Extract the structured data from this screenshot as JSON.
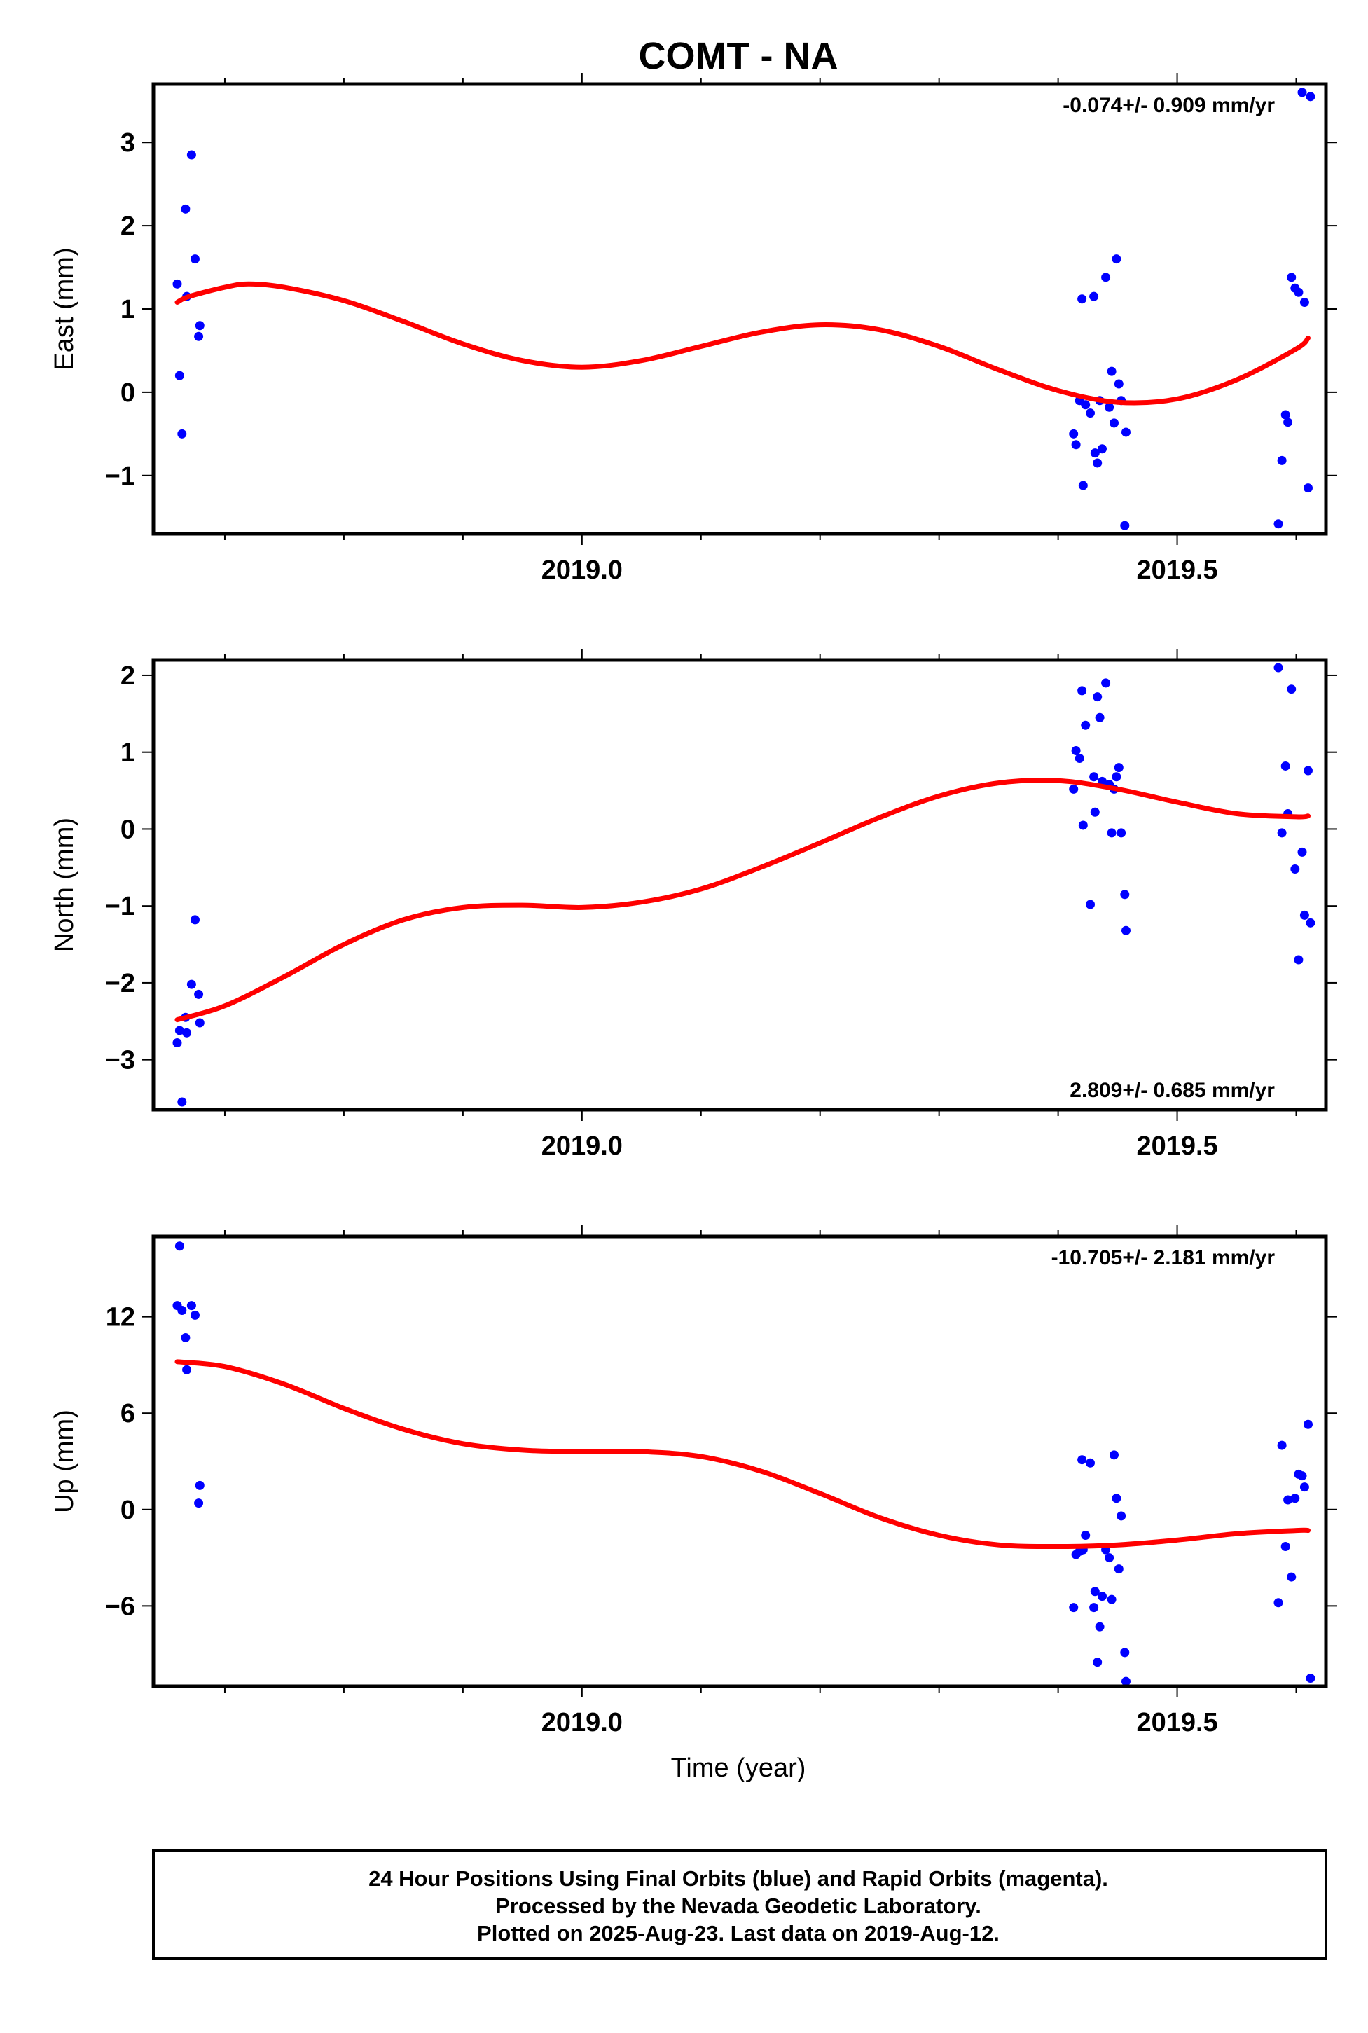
{
  "title": "COMT - NA",
  "xlabel": "Time (year)",
  "footer": {
    "line1": "24 Hour Positions Using Final Orbits (blue) and Rapid Orbits (magenta).",
    "line2": "Processed by the Nevada Geodetic Laboratory.",
    "line3": "Plotted on 2025-Aug-23. Last data on 2019-Aug-12."
  },
  "colors": {
    "points": "#0000ff",
    "fit": "#ff0000",
    "frame": "#000000"
  },
  "chart_data": [
    {
      "type": "scatter",
      "ylabel": "East (mm)",
      "rate": "-0.074+/- 0.909 mm/yr",
      "xlim": [
        2018.64,
        2019.625
      ],
      "ylim": [
        -1.7,
        3.7
      ],
      "xticks": [
        2019.0,
        2019.5
      ],
      "xtick_labels": [
        "2019.0",
        "2019.5"
      ],
      "yticks": [
        -1,
        0,
        1,
        2,
        3
      ],
      "ytick_labels": [
        "−1",
        "0",
        "1",
        "2",
        "3"
      ],
      "x": [
        2018.66,
        2018.662,
        2018.664,
        2018.667,
        2018.668,
        2018.672,
        2018.675,
        2018.678,
        2018.679,
        2019.413,
        2019.415,
        2019.418,
        2019.42,
        2019.421,
        2019.423,
        2019.427,
        2019.43,
        2019.431,
        2019.433,
        2019.435,
        2019.437,
        2019.44,
        2019.443,
        2019.445,
        2019.447,
        2019.449,
        2019.451,
        2019.453,
        2019.456,
        2019.457,
        2019.585,
        2019.588,
        2019.591,
        2019.593,
        2019.596,
        2019.599,
        2019.602,
        2019.605,
        2019.607,
        2019.61,
        2019.612
      ],
      "y": [
        1.3,
        0.2,
        -0.5,
        2.2,
        1.15,
        2.85,
        1.6,
        0.67,
        0.8,
        -0.5,
        -0.63,
        -0.1,
        1.12,
        -1.12,
        -0.15,
        -0.25,
        1.15,
        -0.73,
        -0.85,
        -0.1,
        -0.68,
        1.38,
        -0.18,
        0.25,
        -0.37,
        1.6,
        0.1,
        -0.1,
        -1.6,
        -0.48,
        -1.58,
        -0.82,
        -0.27,
        -0.36,
        1.38,
        1.25,
        1.2,
        3.6,
        1.08,
        -1.15,
        3.55
      ],
      "fit": {
        "x": [
          2018.66,
          2018.67,
          2018.7,
          2018.72,
          2018.75,
          2018.8,
          2018.85,
          2018.9,
          2018.95,
          2019.0,
          2019.05,
          2019.1,
          2019.15,
          2019.2,
          2019.25,
          2019.3,
          2019.35,
          2019.4,
          2019.45,
          2019.5,
          2019.55,
          2019.6,
          2019.61
        ],
        "y": [
          1.08,
          1.15,
          1.26,
          1.3,
          1.26,
          1.1,
          0.85,
          0.58,
          0.38,
          0.3,
          0.38,
          0.55,
          0.72,
          0.81,
          0.75,
          0.55,
          0.27,
          0.02,
          -0.12,
          -0.08,
          0.15,
          0.52,
          0.65
        ]
      }
    },
    {
      "type": "scatter",
      "ylabel": "North (mm)",
      "rate": "2.809+/- 0.685 mm/yr",
      "xlim": [
        2018.64,
        2019.625
      ],
      "ylim": [
        -3.65,
        2.2
      ],
      "xticks": [
        2019.0,
        2019.5
      ],
      "xtick_labels": [
        "2019.0",
        "2019.5"
      ],
      "yticks": [
        -3,
        -2,
        -1,
        0,
        1,
        2
      ],
      "ytick_labels": [
        "−3",
        "−2",
        "−1",
        "0",
        "1",
        "2"
      ],
      "x": [
        2018.66,
        2018.662,
        2018.664,
        2018.667,
        2018.668,
        2018.672,
        2018.675,
        2018.678,
        2018.679,
        2019.413,
        2019.415,
        2019.418,
        2019.42,
        2019.421,
        2019.423,
        2019.427,
        2019.43,
        2019.431,
        2019.433,
        2019.435,
        2019.437,
        2019.44,
        2019.443,
        2019.445,
        2019.447,
        2019.449,
        2019.451,
        2019.453,
        2019.456,
        2019.457,
        2019.585,
        2019.588,
        2019.591,
        2019.593,
        2019.596,
        2019.599,
        2019.602,
        2019.605,
        2019.607,
        2019.61,
        2019.612
      ],
      "y": [
        -2.78,
        -2.62,
        -3.55,
        -2.45,
        -2.65,
        -2.02,
        -1.18,
        -2.15,
        -2.52,
        0.52,
        1.02,
        0.92,
        1.8,
        0.05,
        1.35,
        -0.98,
        0.68,
        0.22,
        1.72,
        1.45,
        0.62,
        1.9,
        0.58,
        -0.05,
        0.52,
        0.68,
        0.8,
        -0.05,
        -0.85,
        -1.32,
        2.1,
        -0.05,
        0.82,
        0.2,
        1.82,
        -0.52,
        -1.7,
        -0.3,
        -1.12,
        0.76,
        -1.22
      ],
      "fit": {
        "x": [
          2018.66,
          2018.7,
          2018.75,
          2018.8,
          2018.85,
          2018.9,
          2018.95,
          2019.0,
          2019.05,
          2019.1,
          2019.15,
          2019.2,
          2019.25,
          2019.3,
          2019.35,
          2019.4,
          2019.45,
          2019.5,
          2019.55,
          2019.6,
          2019.61
        ],
        "y": [
          -2.48,
          -2.3,
          -1.92,
          -1.5,
          -1.18,
          -1.02,
          -0.99,
          -1.02,
          -0.95,
          -0.78,
          -0.5,
          -0.18,
          0.15,
          0.43,
          0.6,
          0.63,
          0.52,
          0.35,
          0.2,
          0.16,
          0.17
        ]
      }
    },
    {
      "type": "scatter",
      "ylabel": "Up (mm)",
      "rate": "-10.705+/- 2.181 mm/yr",
      "xlim": [
        2018.64,
        2019.625
      ],
      "ylim": [
        -11,
        17
      ],
      "xticks": [
        2019.0,
        2019.5
      ],
      "xtick_labels": [
        "2019.0",
        "2019.5"
      ],
      "yticks": [
        -6,
        0,
        6,
        12
      ],
      "ytick_labels": [
        "−6",
        "0",
        "6",
        "12"
      ],
      "x": [
        2018.66,
        2018.662,
        2018.664,
        2018.667,
        2018.668,
        2018.672,
        2018.675,
        2018.678,
        2018.679,
        2019.413,
        2019.415,
        2019.418,
        2019.42,
        2019.421,
        2019.423,
        2019.427,
        2019.43,
        2019.431,
        2019.433,
        2019.435,
        2019.437,
        2019.44,
        2019.443,
        2019.445,
        2019.447,
        2019.449,
        2019.451,
        2019.453,
        2019.456,
        2019.457,
        2019.585,
        2019.588,
        2019.591,
        2019.593,
        2019.596,
        2019.599,
        2019.602,
        2019.605,
        2019.607,
        2019.61,
        2019.612
      ],
      "y": [
        12.7,
        16.4,
        12.4,
        10.7,
        8.7,
        12.7,
        12.1,
        0.4,
        1.5,
        -6.1,
        -2.8,
        -2.6,
        3.1,
        -2.5,
        -1.6,
        2.9,
        -6.1,
        -5.1,
        -9.5,
        -7.3,
        -5.4,
        -2.5,
        -3.0,
        -5.6,
        3.4,
        0.7,
        -3.7,
        -0.4,
        -8.9,
        -10.7,
        -5.8,
        4.0,
        -2.3,
        0.6,
        -4.2,
        0.7,
        2.2,
        2.1,
        1.4,
        5.3,
        -10.5
      ],
      "fit": {
        "x": [
          2018.66,
          2018.7,
          2018.75,
          2018.8,
          2018.85,
          2018.9,
          2018.95,
          2019.0,
          2019.05,
          2019.1,
          2019.15,
          2019.2,
          2019.25,
          2019.3,
          2019.35,
          2019.4,
          2019.45,
          2019.5,
          2019.55,
          2019.6,
          2019.61
        ],
        "y": [
          9.2,
          8.9,
          7.8,
          6.3,
          5.0,
          4.1,
          3.7,
          3.6,
          3.6,
          3.3,
          2.4,
          1.0,
          -0.5,
          -1.6,
          -2.2,
          -2.3,
          -2.2,
          -1.9,
          -1.5,
          -1.3,
          -1.3
        ]
      }
    }
  ]
}
